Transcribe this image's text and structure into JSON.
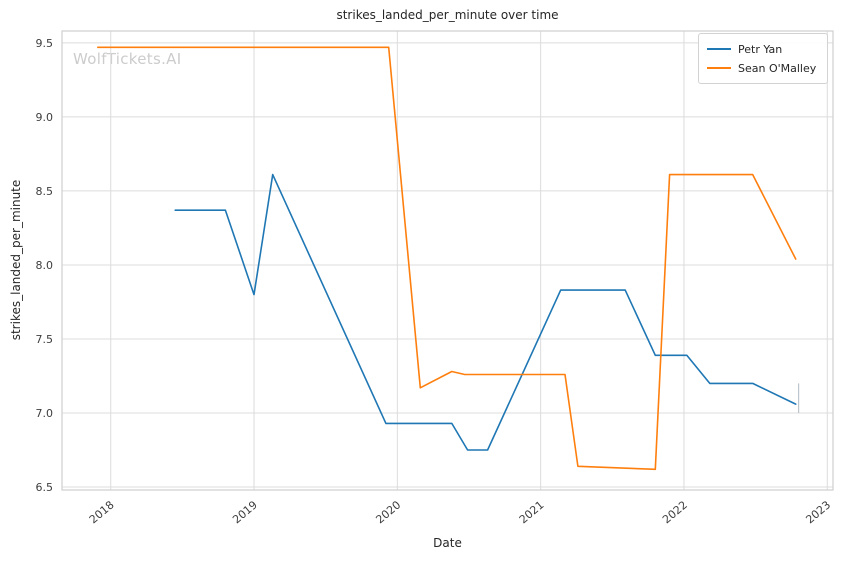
{
  "watermark": {
    "text": "WolfTickets.AI",
    "color": "#cccccc"
  },
  "chart_data": {
    "type": "line",
    "title": "strikes_landed_per_minute over time",
    "xlabel": "Date",
    "ylabel": "strikes_landed_per_minute",
    "xlim": [
      2017.66,
      2023.04
    ],
    "ylim": [
      6.48,
      9.58
    ],
    "xticks": [
      2018,
      2019,
      2020,
      2021,
      2022,
      2023
    ],
    "yticks": [
      6.5,
      7.0,
      7.5,
      8.0,
      8.5,
      9.0,
      9.5
    ],
    "grid": true,
    "grid_color": "#dcdcdc",
    "spine_color": "#cfcfcf",
    "legend_position": "upper right",
    "series": [
      {
        "name": "Petr Yan",
        "color": "#1f77b4",
        "points": [
          [
            2018.45,
            8.37
          ],
          [
            2018.8,
            8.37
          ],
          [
            2019.0,
            7.8
          ],
          [
            2019.13,
            8.61
          ],
          [
            2019.92,
            6.93
          ],
          [
            2020.38,
            6.93
          ],
          [
            2020.49,
            6.75
          ],
          [
            2020.63,
            6.75
          ],
          [
            2021.14,
            7.83
          ],
          [
            2021.59,
            7.83
          ],
          [
            2021.8,
            7.39
          ],
          [
            2022.02,
            7.39
          ],
          [
            2022.18,
            7.2
          ],
          [
            2022.48,
            7.2
          ],
          [
            2022.78,
            7.06
          ]
        ]
      },
      {
        "name": "Sean O'Malley",
        "color": "#ff7f0e",
        "points": [
          [
            2017.91,
            9.47
          ],
          [
            2019.94,
            9.47
          ],
          [
            2020.16,
            7.17
          ],
          [
            2020.38,
            7.28
          ],
          [
            2020.47,
            7.26
          ],
          [
            2021.17,
            7.26
          ],
          [
            2021.26,
            6.64
          ],
          [
            2021.8,
            6.62
          ],
          [
            2021.9,
            8.61
          ],
          [
            2022.48,
            8.61
          ],
          [
            2022.78,
            8.04
          ]
        ]
      }
    ],
    "errorbar": {
      "x": 2022.8,
      "y_low": 7.0,
      "y_high": 7.2,
      "color": "#bcc4cc"
    }
  }
}
